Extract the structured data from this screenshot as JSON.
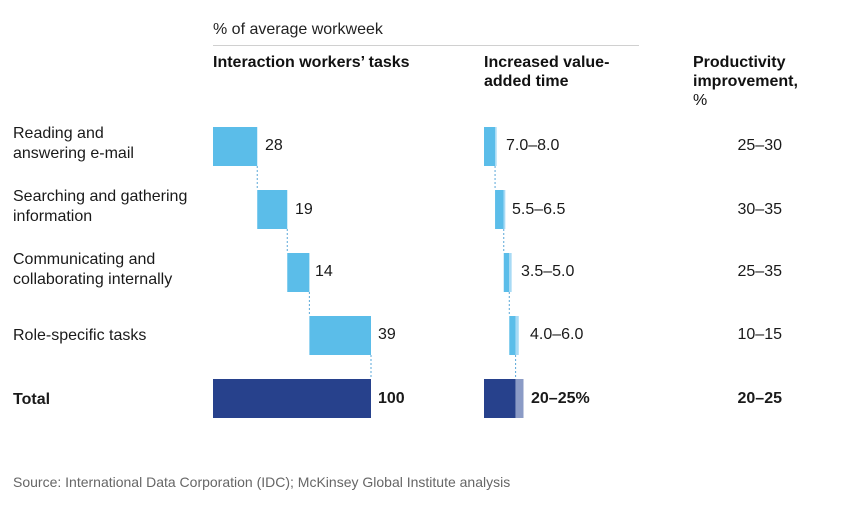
{
  "unit_label": "% of average workweek",
  "headers": {
    "tasks": "Interaction workers’ tasks",
    "value_added": "Increased value-added time",
    "productivity_line1": "Productivity improvement,",
    "productivity_line2": "%"
  },
  "rows": [
    {
      "label": "Reading and answering e-mail",
      "value_label": "28",
      "range_label": "7.0–8.0",
      "productivity": "25–30"
    },
    {
      "label": "Searching and gathering information",
      "value_label": "19",
      "range_label": "5.5–6.5",
      "productivity": "30–35"
    },
    {
      "label": "Communicating and collaborating internally",
      "value_label": "14",
      "range_label": "3.5–5.0",
      "productivity": "25–35"
    },
    {
      "label": "Role-specific tasks",
      "value_label": "39",
      "range_label": "4.0–6.0",
      "productivity": "10–15"
    }
  ],
  "total": {
    "label": "Total",
    "value_label": "100",
    "range_label": "20–25%",
    "productivity": "20–25"
  },
  "source": "Source: International Data Corporation (IDC); McKinsey Global Institute analysis",
  "colors": {
    "task_bar": "#5bbde9",
    "total_bar": "#27418c",
    "range_light": "#a7daf5",
    "range_total_light": "#8b9bc6",
    "connector": "#5aa7d8"
  },
  "chart_data": [
    {
      "type": "bar",
      "variant": "waterfall",
      "categories": [
        "Reading and answering e-mail",
        "Searching and gathering information",
        "Communicating and collaborating internally",
        "Role-specific tasks",
        "Total"
      ],
      "values": [
        28,
        19,
        14,
        39,
        100
      ],
      "title": "Interaction workers’ tasks",
      "xlabel": "% of average workweek",
      "ylabel": "",
      "xlim": [
        0,
        100
      ]
    },
    {
      "type": "bar",
      "variant": "waterfall-range",
      "categories": [
        "Reading and answering e-mail",
        "Searching and gathering information",
        "Communicating and collaborating internally",
        "Role-specific tasks",
        "Total"
      ],
      "ranges": [
        [
          7.0,
          8.0
        ],
        [
          5.5,
          6.5
        ],
        [
          3.5,
          5.0
        ],
        [
          4.0,
          6.0
        ],
        [
          20,
          25
        ]
      ],
      "title": "Increased value-added time",
      "xlabel": "% of average workweek",
      "ylabel": ""
    }
  ],
  "productivity_table": {
    "header": "Productivity improvement, %",
    "values": [
      "25–30",
      "30–35",
      "25–35",
      "10–15",
      "20–25"
    ]
  }
}
